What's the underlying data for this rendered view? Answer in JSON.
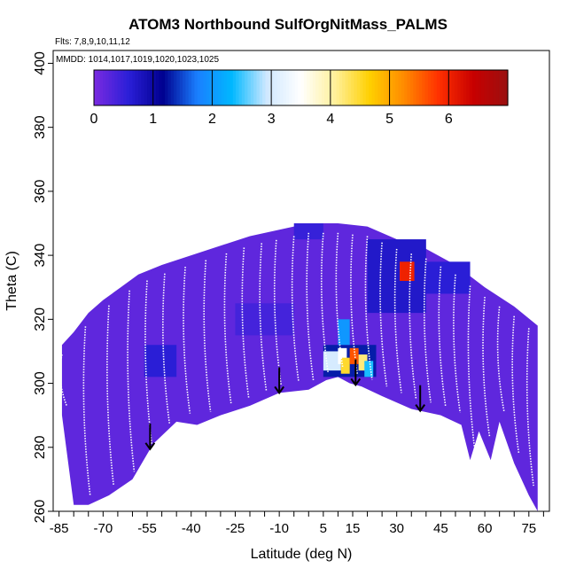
{
  "chart_data": {
    "type": "heatmap",
    "title": "ATOM3 Northbound SulfOrgNitMass_PALMS",
    "flights_label": "Flts: 7,8,9,10,11,12",
    "mmdd_label": "MMDD: 1014,1017,1019,1020,1023,1025",
    "xlabel": "Latitude (deg N)",
    "ylabel": "Theta (C)",
    "xlim": [
      -87,
      82
    ],
    "ylim": [
      260,
      404
    ],
    "x_ticks": [
      -85,
      -70,
      -55,
      -40,
      -25,
      -10,
      5,
      15,
      30,
      45,
      60,
      75
    ],
    "y_ticks": [
      260,
      280,
      300,
      320,
      340,
      360,
      380,
      400
    ],
    "colorbar": {
      "range": [
        0,
        7
      ],
      "ticks": [
        0,
        1,
        2,
        3,
        4,
        5,
        6
      ],
      "colors": [
        "#7a2be0",
        "#2b1fd8",
        "#00008f",
        "#1a7fff",
        "#00b8ff",
        "#cfe8ff",
        "#ffffff",
        "#fff09a",
        "#ffd000",
        "#ff8a00",
        "#ff3000",
        "#c80000",
        "#9a1010"
      ]
    },
    "background_value": 0.2,
    "domain_top": [
      [
        -84,
        312
      ],
      [
        -80,
        316
      ],
      [
        -75,
        322
      ],
      [
        -70,
        326
      ],
      [
        -64,
        330
      ],
      [
        -58,
        334
      ],
      [
        -50,
        337
      ],
      [
        -40,
        340
      ],
      [
        -30,
        343
      ],
      [
        -20,
        346
      ],
      [
        -10,
        348
      ],
      [
        0,
        350
      ],
      [
        10,
        350
      ],
      [
        20,
        349
      ],
      [
        30,
        345
      ],
      [
        40,
        342
      ],
      [
        50,
        337
      ],
      [
        60,
        330
      ],
      [
        70,
        324
      ],
      [
        78,
        318
      ]
    ],
    "domain_bottom": [
      [
        -84,
        290
      ],
      [
        -80,
        262
      ],
      [
        -75,
        262
      ],
      [
        -68,
        265
      ],
      [
        -60,
        270
      ],
      [
        -53,
        281
      ],
      [
        -45,
        288
      ],
      [
        -38,
        287
      ],
      [
        -30,
        290
      ],
      [
        -20,
        293
      ],
      [
        -10,
        297
      ],
      [
        0,
        298
      ],
      [
        6,
        301
      ],
      [
        10,
        302
      ],
      [
        14,
        300
      ],
      [
        18,
        299
      ],
      [
        25,
        296
      ],
      [
        35,
        292
      ],
      [
        45,
        290
      ],
      [
        52,
        287
      ],
      [
        55,
        276
      ],
      [
        58,
        285
      ],
      [
        62,
        276
      ],
      [
        65,
        288
      ],
      [
        70,
        275
      ],
      [
        75,
        265
      ],
      [
        78,
        260
      ]
    ],
    "highlights": [
      {
        "lat": [
          -56,
          -45
        ],
        "theta": [
          302,
          312
        ],
        "value": 0.6
      },
      {
        "lat": [
          -25,
          -5
        ],
        "theta": [
          315,
          325
        ],
        "value": 0.4
      },
      {
        "lat": [
          -5,
          5
        ],
        "theta": [
          345,
          350
        ],
        "value": 0.5
      },
      {
        "lat": [
          20,
          40
        ],
        "theta": [
          322,
          345
        ],
        "value": 0.7
      },
      {
        "lat": [
          31,
          36
        ],
        "theta": [
          332,
          338
        ],
        "value": 6.0
      },
      {
        "lat": [
          40,
          55
        ],
        "theta": [
          328,
          338
        ],
        "value": 0.6
      },
      {
        "lat": [
          5,
          23
        ],
        "theta": [
          302,
          312
        ],
        "value": 1.3
      },
      {
        "lat": [
          10,
          14
        ],
        "theta": [
          312,
          320
        ],
        "value": 2.0
      },
      {
        "lat": [
          5,
          11
        ],
        "theta": [
          304,
          310
        ],
        "value": 3.0
      },
      {
        "lat": [
          10,
          13
        ],
        "theta": [
          306,
          311
        ],
        "value": 3.5
      },
      {
        "lat": [
          11,
          14
        ],
        "theta": [
          303,
          308
        ],
        "value": 4.5
      },
      {
        "lat": [
          14,
          17
        ],
        "theta": [
          306,
          311
        ],
        "value": 5.6
      },
      {
        "lat": [
          17,
          20
        ],
        "theta": [
          304,
          309
        ],
        "value": 4.2
      },
      {
        "lat": [
          19,
          22
        ],
        "theta": [
          302,
          307
        ],
        "value": 2.4
      }
    ],
    "arrows_lat": [
      -54,
      -10,
      16,
      38
    ],
    "flight_tracks_lat": [
      -84,
      -76,
      -68,
      -61,
      -55,
      -49,
      -42,
      -35,
      -28,
      -22,
      -16,
      -11,
      -5,
      0,
      5,
      10,
      15,
      20,
      25,
      30,
      35,
      40,
      45,
      50,
      55,
      60,
      65,
      70,
      75,
      79
    ]
  }
}
